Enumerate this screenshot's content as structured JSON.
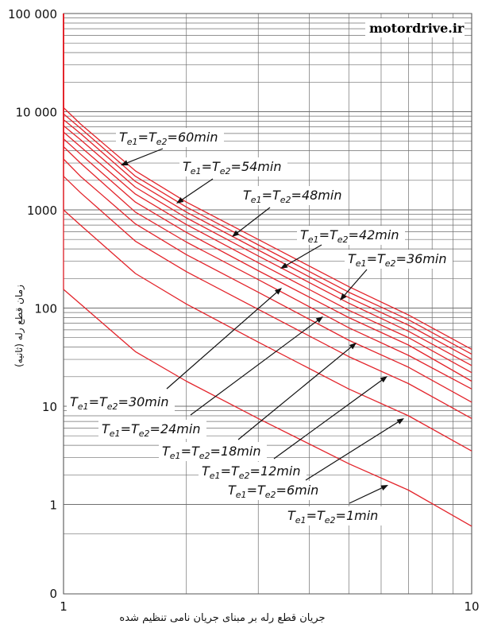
{
  "chart_data": {
    "type": "line",
    "title": "",
    "watermark": "motordrive.ir",
    "xlabel": "جریان قطع رله بر مبنای جریان نامی تنظیم شده",
    "ylabel": "زمان قطع رله (ثانیه)",
    "x_scale": "log",
    "y_scale": "log",
    "xlim": [
      1,
      10
    ],
    "ylim": [
      0,
      100000
    ],
    "grid": true,
    "x_ticks": [
      1,
      10
    ],
    "x_tick_labels": [
      "1",
      "10"
    ],
    "y_ticks": [
      1,
      10,
      100,
      1000,
      10000,
      100000
    ],
    "y_tick_labels": [
      "1",
      "10",
      "100",
      "1000",
      "10 000",
      "100 000"
    ],
    "y_zero_label": "0",
    "line_color": "#e3242b",
    "series": [
      {
        "name": "Te1=Te2=60min",
        "x": [
          1.0,
          1.1,
          1.5,
          2,
          3,
          5,
          7,
          10
        ],
        "y": [
          11000,
          7500,
          2500,
          1200,
          500,
          165,
          85,
          38
        ]
      },
      {
        "name": "Te1=Te2=54min",
        "x": [
          1.0,
          1.1,
          1.5,
          2,
          3,
          5,
          7,
          10
        ],
        "y": [
          9500,
          6800,
          2200,
          1070,
          440,
          145,
          76,
          34
        ]
      },
      {
        "name": "Te1=Te2=48min",
        "x": [
          1.0,
          1.1,
          1.5,
          2,
          3,
          5,
          7,
          10
        ],
        "y": [
          8300,
          6000,
          1950,
          950,
          390,
          128,
          67,
          30
        ]
      },
      {
        "name": "Te1=Te2=42min",
        "x": [
          1.0,
          1.1,
          1.5,
          2,
          3,
          5,
          7,
          10
        ],
        "y": [
          7200,
          5200,
          1700,
          830,
          340,
          112,
          58,
          26
        ]
      },
      {
        "name": "Te1=Te2=36min",
        "x": [
          1.0,
          1.1,
          1.5,
          2,
          3,
          5,
          7,
          10
        ],
        "y": [
          6200,
          4400,
          1450,
          710,
          290,
          95,
          50,
          22
        ]
      },
      {
        "name": "Te1=Te2=30min",
        "x": [
          1.0,
          1.1,
          1.5,
          2,
          3,
          5,
          7,
          10
        ],
        "y": [
          5300,
          3700,
          1200,
          590,
          240,
          80,
          42,
          18
        ]
      },
      {
        "name": "Te1=Te2=24min",
        "x": [
          1.0,
          1.1,
          1.5,
          2,
          3,
          5,
          7,
          10
        ],
        "y": [
          4400,
          3000,
          950,
          470,
          195,
          63,
          33,
          15
        ]
      },
      {
        "name": "Te1=Te2=18min",
        "x": [
          1.0,
          1.1,
          1.5,
          2,
          3,
          5,
          7,
          10
        ],
        "y": [
          3300,
          2200,
          720,
          350,
          145,
          47,
          25,
          11
        ]
      },
      {
        "name": "Te1=Te2=12min",
        "x": [
          1.0,
          1.1,
          1.5,
          2,
          3,
          5,
          7,
          10
        ],
        "y": [
          2200,
          1500,
          480,
          235,
          97,
          32,
          17,
          7.5
        ]
      },
      {
        "name": "Te1=Te2=6min",
        "x": [
          1.0,
          1.1,
          1.5,
          2,
          3,
          5,
          7,
          10
        ],
        "y": [
          1000,
          700,
          225,
          110,
          45,
          15,
          8,
          3.5
        ]
      },
      {
        "name": "Te1=Te2=1min",
        "x": [
          1.0,
          1.1,
          1.5,
          2,
          3,
          5,
          7,
          10
        ],
        "y": [
          155,
          110,
          36,
          18,
          7.5,
          2.6,
          1.4,
          0.6
        ]
      }
    ],
    "annotations": [
      {
        "pre": "T",
        "s1": "e1",
        "mid": "=T",
        "s2": "e2",
        "post": "=60min",
        "series": "Te1=Te2=60min"
      },
      {
        "pre": "T",
        "s1": "e1",
        "mid": "=T",
        "s2": "e2",
        "post": "=54min",
        "series": "Te1=Te2=54min"
      },
      {
        "pre": "T",
        "s1": "e1",
        "mid": "=T",
        "s2": "e2",
        "post": "=48min",
        "series": "Te1=Te2=48min"
      },
      {
        "pre": "T",
        "s1": "e1",
        "mid": "=T",
        "s2": "e2",
        "post": "=42min",
        "series": "Te1=Te2=42min"
      },
      {
        "pre": "T",
        "s1": "e1",
        "mid": "=T",
        "s2": "e2",
        "post": "=36min",
        "series": "Te1=Te2=36min"
      },
      {
        "pre": "T",
        "s1": "e1",
        "mid": "=T",
        "s2": "e2",
        "post": "=30min",
        "series": "Te1=Te2=30min"
      },
      {
        "pre": "T",
        "s1": "e1",
        "mid": "=T",
        "s2": "e2",
        "post": "=24min",
        "series": "Te1=Te2=24min"
      },
      {
        "pre": "T",
        "s1": "e1",
        "mid": "=T",
        "s2": "e2",
        "post": "=18min",
        "series": "Te1=Te2=18min"
      },
      {
        "pre": "T",
        "s1": "e1",
        "mid": "=T",
        "s2": "e2",
        "post": "=12min",
        "series": "Te1=Te2=12min"
      },
      {
        "pre": "T",
        "s1": "e1",
        "mid": "=T",
        "s2": "e2",
        "post": "=6min",
        "series": "Te1=Te2=6min"
      },
      {
        "pre": "T",
        "s1": "e1",
        "mid": "=T",
        "s2": "e2",
        "post": "=1min",
        "series": "Te1=Te2=1min"
      }
    ]
  }
}
